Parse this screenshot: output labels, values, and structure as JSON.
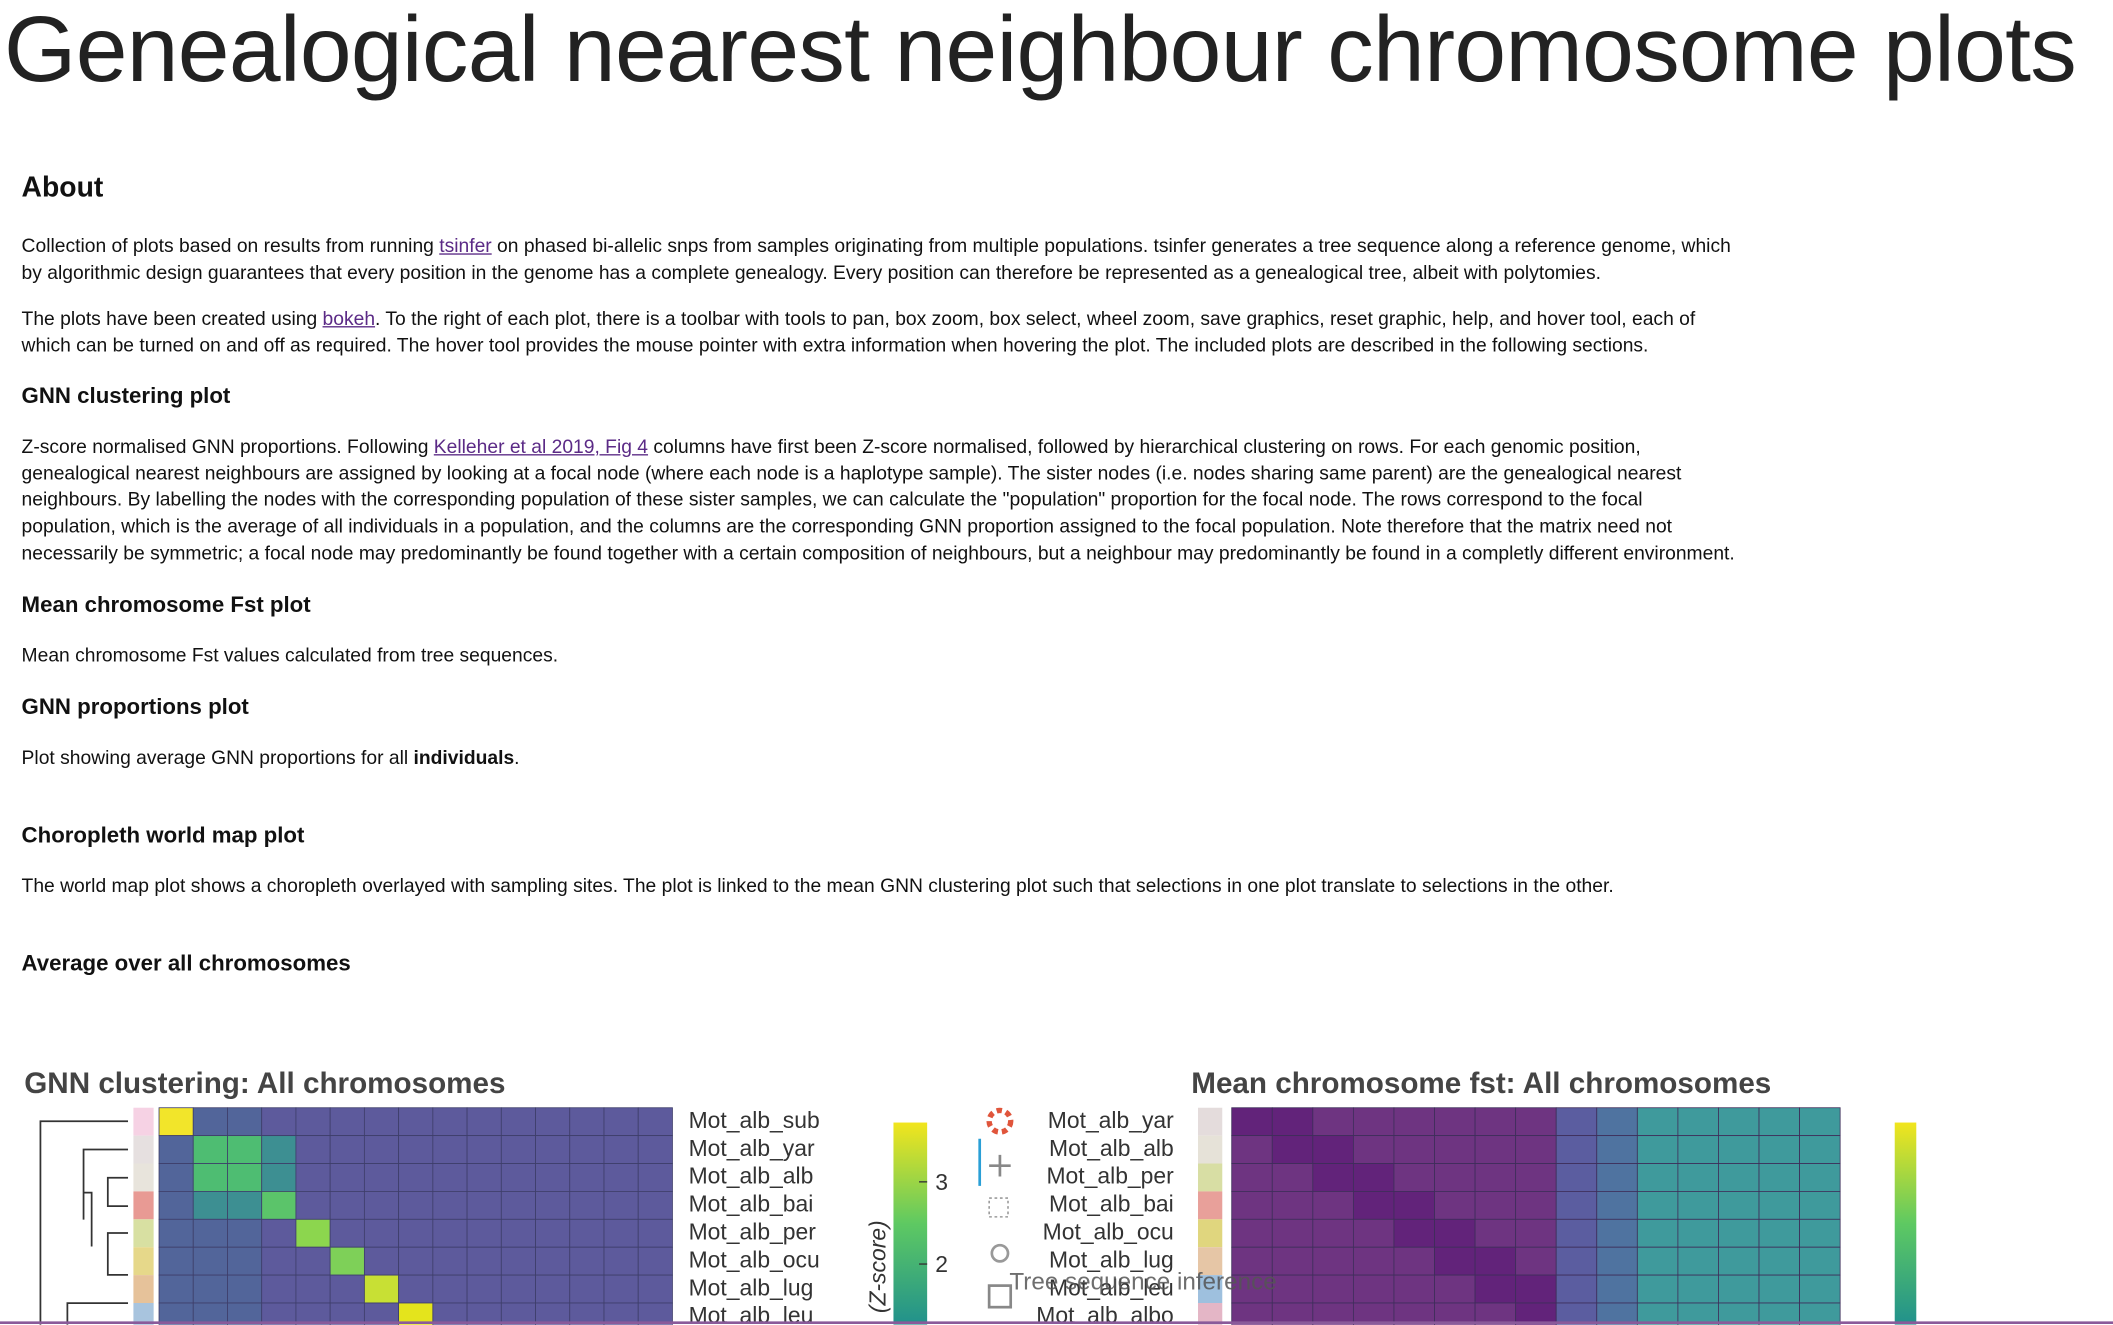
{
  "title": "Genealogical nearest neighbour chromosome plots",
  "about": {
    "heading": "About",
    "paragraphs": [
      [
        {
          "text": "Collection of plots based on results from running "
        },
        {
          "text": "tsinfer",
          "style": "link"
        },
        {
          "text": " on phased bi-allelic snps from samples originating from multiple populations. tsinfer generates a tree sequence along a reference genome, which by algorithmic design guarantees that every position in the genome has a complete genealogy. Every position can therefore be represented as a genealogical tree, albeit with polytomies."
        }
      ],
      [
        {
          "text": "The plots have been created using "
        },
        {
          "text": "bokeh",
          "style": "link"
        },
        {
          "text": ". To the right of each plot, there is a toolbar with tools to pan, box zoom, box select, wheel zoom, save graphics, reset graphic, help, and hover tool, each of which can be turned on and off as required. The hover tool provides the mouse pointer with extra information when hovering the plot. The included plots are described in the following sections."
        }
      ]
    ]
  },
  "sections": [
    {
      "heading": "GNN clustering plot",
      "paragraph": [
        {
          "text": "Z-score normalised GNN proportions. Following "
        },
        {
          "text": "Kelleher et al 2019, Fig 4",
          "style": "link"
        },
        {
          "text": " columns have first been Z-score normalised, followed by hierarchical clustering on rows. For each genomic position, genealogical nearest neighbours are assigned by looking at a focal node (where each node is a haplotype sample). The sister nodes (i.e. nodes sharing same parent) are the genealogical nearest neighbours. By labelling the nodes with the corresponding population of these sister samples, we can calculate the \"population\" proportion for the focal node. The rows correspond to the focal population, which is the average of all individuals in a population, and the columns are the corresponding GNN proportion assigned to the focal population. Note therefore that the matrix need not necessarily be symmetric; a focal node may predominantly be found together with a certain composition of neighbours, but a neighbour may predominantly be found in a completly different environment."
        }
      ]
    },
    {
      "heading": "Mean chromosome Fst plot",
      "paragraph": [
        {
          "text": "Mean chromosome Fst values calculated from tree sequences."
        }
      ]
    },
    {
      "heading": "GNN proportions plot",
      "paragraph": [
        {
          "text": "Plot showing average GNN proportions for all "
        },
        {
          "text": "individuals",
          "style": "bold"
        },
        {
          "text": "."
        }
      ]
    },
    {
      "heading": "Choropleth world map plot",
      "paragraph": [
        {
          "text": "The world map plot shows a choropleth overlayed with sampling sites. The plot is linked to the mean GNN clustering plot such that selections in one plot translate to selections in the other."
        }
      ]
    }
  ],
  "average_heading": "Average over all chromosomes",
  "plots": [
    {
      "title": "GNN clustering: All chromosomes",
      "rows": [
        "Mot_alb_sub",
        "Mot_alb_yar",
        "Mot_alb_alb",
        "Mot_alb_bai",
        "Mot_alb_per",
        "Mot_alb_ocu",
        "Mot_alb_lug",
        "Mot_alb_leu"
      ],
      "colorbar_ticks": [
        3,
        2
      ],
      "colorbar_label": "(Z-score)"
    },
    {
      "title": "Mean chromosome fst: All chromosomes",
      "rows": [
        "Mot_alb_yar",
        "Mot_alb_alb",
        "Mot_alb_per",
        "Mot_alb_bai",
        "Mot_alb_ocu",
        "Mot_alb_lug",
        "Mot_alb_leu",
        "Mot_alb_albo"
      ]
    }
  ],
  "overlay": "Tree sequence inference"
}
